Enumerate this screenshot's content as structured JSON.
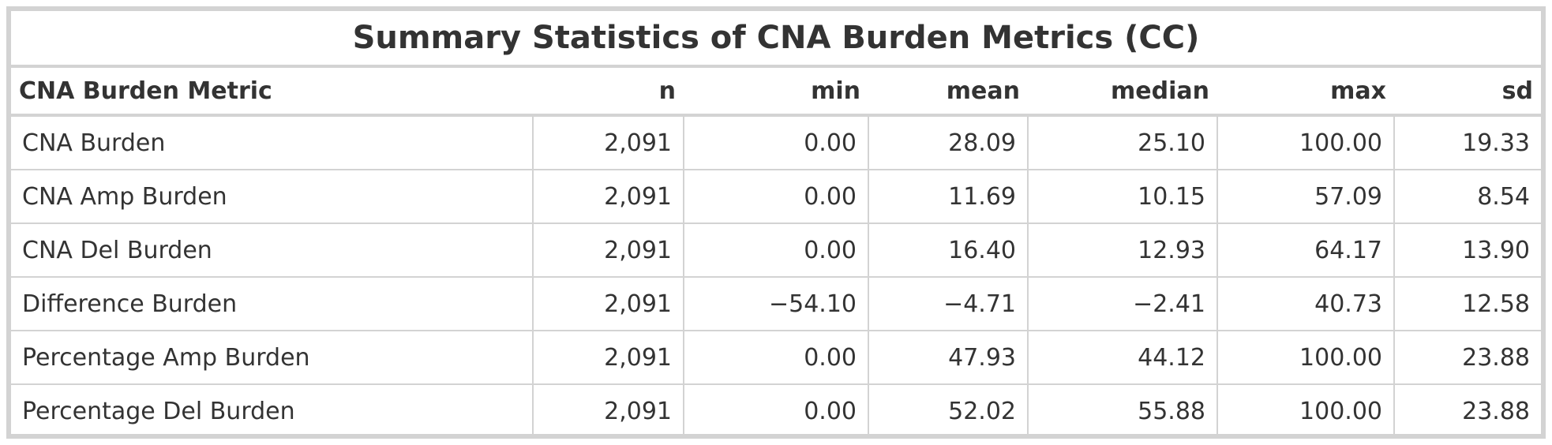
{
  "title": "Summary Statistics of CNA Burden Metrics (CC)",
  "columns": [
    "CNA Burden Metric",
    "n",
    "min",
    "mean",
    "median",
    "max",
    "sd"
  ],
  "rows": [
    [
      "CNA Burden",
      "2,091",
      "0.00",
      "28.09",
      "25.10",
      "100.00",
      "19.33"
    ],
    [
      "CNA Amp Burden",
      "2,091",
      "0.00",
      "11.69",
      "10.15",
      "57.09",
      "8.54"
    ],
    [
      "CNA Del Burden",
      "2,091",
      "0.00",
      "16.40",
      "12.93",
      "64.17",
      "13.90"
    ],
    [
      "Difference Burden",
      "2,091",
      "−54.10",
      "−4.71",
      "−2.41",
      "40.73",
      "12.58"
    ],
    [
      "Percentage Amp Burden",
      "2,091",
      "0.00",
      "47.93",
      "44.12",
      "100.00",
      "23.88"
    ],
    [
      "Percentage Del Burden",
      "2,091",
      "0.00",
      "52.02",
      "55.88",
      "100.00",
      "23.88"
    ]
  ]
}
